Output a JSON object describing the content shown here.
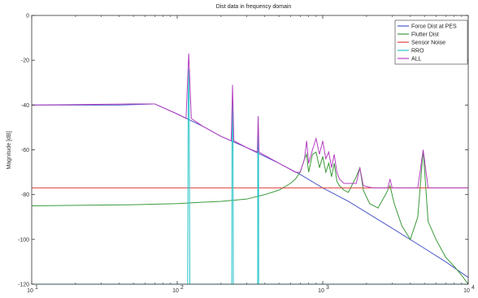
{
  "chart_data": {
    "type": "line",
    "title": "Dist data in frequency domain",
    "xlabel": "",
    "ylabel": "Magnitude [dB]",
    "xscale": "log",
    "xlim": [
      10,
      10000
    ],
    "ylim": [
      -120,
      0
    ],
    "grid": false,
    "legend_position": "top-right",
    "x_ticks": [
      10,
      100,
      1000,
      10000
    ],
    "x_tick_labels": [
      "10",
      "10",
      "10",
      "10"
    ],
    "x_tick_exponents": [
      "1",
      "2",
      "3",
      "4"
    ],
    "y_ticks": [
      0,
      -20,
      -40,
      -60,
      -80,
      -100,
      -120
    ],
    "y_tick_labels": [
      "0",
      "-20",
      "-40",
      "-60",
      "-80",
      "-100",
      "-120"
    ],
    "series": [
      {
        "name": "Force Dist at PES",
        "color": "#4a56c8",
        "x": [
          10,
          20,
          40,
          70,
          100,
          150,
          200,
          300,
          500,
          700,
          1000,
          1500,
          2000,
          3000,
          5000,
          7000,
          10000
        ],
        "y": [
          -40,
          -40,
          -40,
          -39.5,
          -44,
          -49.5,
          -54,
          -59,
          -66,
          -71,
          -77,
          -83,
          -88,
          -95,
          -104,
          -110,
          -117
        ]
      },
      {
        "name": "Flutter Dist",
        "color": "#3a9a3a",
        "x": [
          10,
          50,
          100,
          200,
          300,
          400,
          500,
          600,
          650,
          700,
          750,
          775,
          800,
          850,
          900,
          950,
          1000,
          1050,
          1100,
          1150,
          1200,
          1250,
          1300,
          1400,
          1500,
          1700,
          1800,
          1900,
          2100,
          2400,
          2700,
          2900,
          3100,
          3500,
          4000,
          4500,
          4900,
          5300,
          6000,
          7000,
          8000,
          9000,
          10000
        ],
        "y": [
          -85,
          -84.5,
          -84,
          -83,
          -82,
          -80,
          -78,
          -75,
          -73,
          -70,
          -64,
          -62,
          -70,
          -62,
          -61,
          -68,
          -63,
          -70,
          -66,
          -72,
          -66,
          -74,
          -76,
          -78,
          -79,
          -72,
          -68,
          -78,
          -84,
          -86,
          -80,
          -76,
          -84,
          -94,
          -100,
          -90,
          -60,
          -92,
          -100,
          -108,
          -112,
          -116,
          -120
        ]
      },
      {
        "name": "Sensor Noise",
        "color": "#e0413c",
        "x": [
          10,
          10000
        ],
        "y": [
          -77,
          -77
        ]
      },
      {
        "name": "RRO",
        "color": "#25c2c8",
        "x": [
          10,
          118,
          119,
          120,
          121,
          122,
          123,
          237,
          238,
          240,
          242,
          243,
          357,
          358,
          360,
          362,
          363,
          10000
        ],
        "y": [
          -120,
          -120,
          -40,
          -24,
          -40,
          -120,
          -120,
          -120,
          -55,
          -36,
          -55,
          -120,
          -120,
          -58,
          -45,
          -58,
          -120,
          -120
        ]
      },
      {
        "name": "ALL",
        "color": "#b540c0",
        "x": [
          10,
          50,
          70,
          100,
          115,
          120,
          125,
          150,
          200,
          235,
          240,
          245,
          300,
          355,
          360,
          365,
          500,
          650,
          700,
          750,
          775,
          800,
          850,
          900,
          950,
          1000,
          1050,
          1100,
          1150,
          1200,
          1250,
          1300,
          1400,
          1700,
          1800,
          1900,
          2200,
          2800,
          2900,
          3000,
          3500,
          4500,
          4900,
          5300,
          7000,
          10000
        ],
        "y": [
          -40,
          -39.5,
          -39.5,
          -44,
          -46,
          -17,
          -46,
          -49.5,
          -54,
          -56,
          -31,
          -56,
          -59,
          -61,
          -45,
          -61,
          -66,
          -70,
          -70,
          -64,
          -56,
          -66,
          -60,
          -55,
          -62,
          -56,
          -64,
          -61,
          -68,
          -62,
          -70,
          -73,
          -75,
          -75,
          -68,
          -76,
          -77,
          -77,
          -73,
          -77,
          -77,
          -77,
          -60,
          -77,
          -77,
          -77
        ]
      }
    ]
  }
}
